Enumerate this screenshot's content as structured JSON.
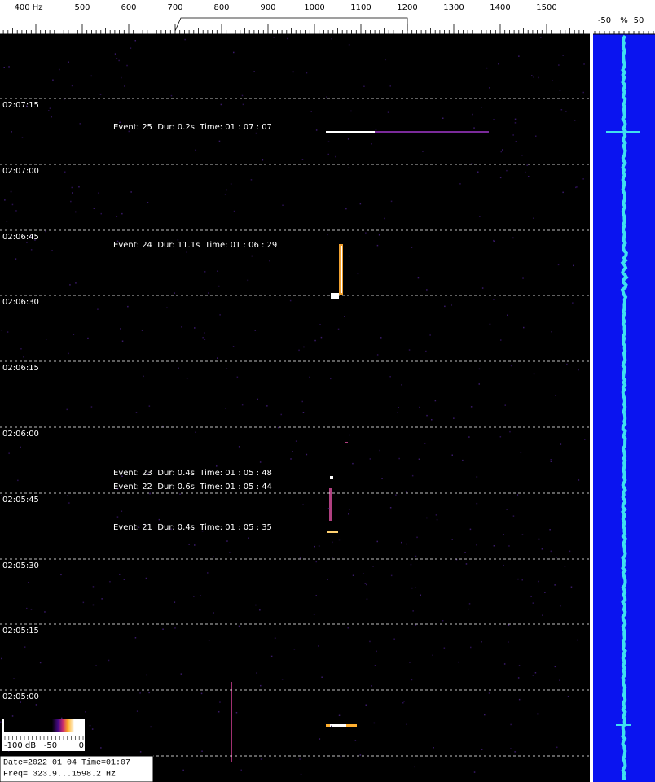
{
  "frequency_axis": {
    "labels": [
      "400 Hz",
      "500",
      "600",
      "700",
      "800",
      "900",
      "1000",
      "1100",
      "1200",
      "1300",
      "1400",
      "1500"
    ]
  },
  "level_axis": {
    "labels": [
      "-50",
      "%",
      "50"
    ]
  },
  "time_labels": [
    "02:07:15",
    "02:07:00",
    "02:06:45",
    "02:06:30",
    "02:06:15",
    "02:06:00",
    "02:05:45",
    "02:05:30",
    "02:05:15",
    "02:05:00"
  ],
  "events": [
    "Event: 25  Dur: 0.2s  Time: 01 : 07 : 07",
    "Event: 24  Dur: 11.1s  Time: 01 : 06 : 29",
    "Event: 23  Dur: 0.4s  Time: 01 : 05 : 48",
    "Event: 22  Dur: 0.6s  Time: 01 : 05 : 44",
    "Event: 21  Dur: 0.4s  Time: 01 : 05 : 35"
  ],
  "color_scale": {
    "labels": [
      "-100 dB",
      "-50",
      "0"
    ]
  },
  "info": {
    "date_line": "Date=2022-01-04 Time=01:07",
    "freq_line": "Freq= 323.9...1598.2 Hz"
  }
}
